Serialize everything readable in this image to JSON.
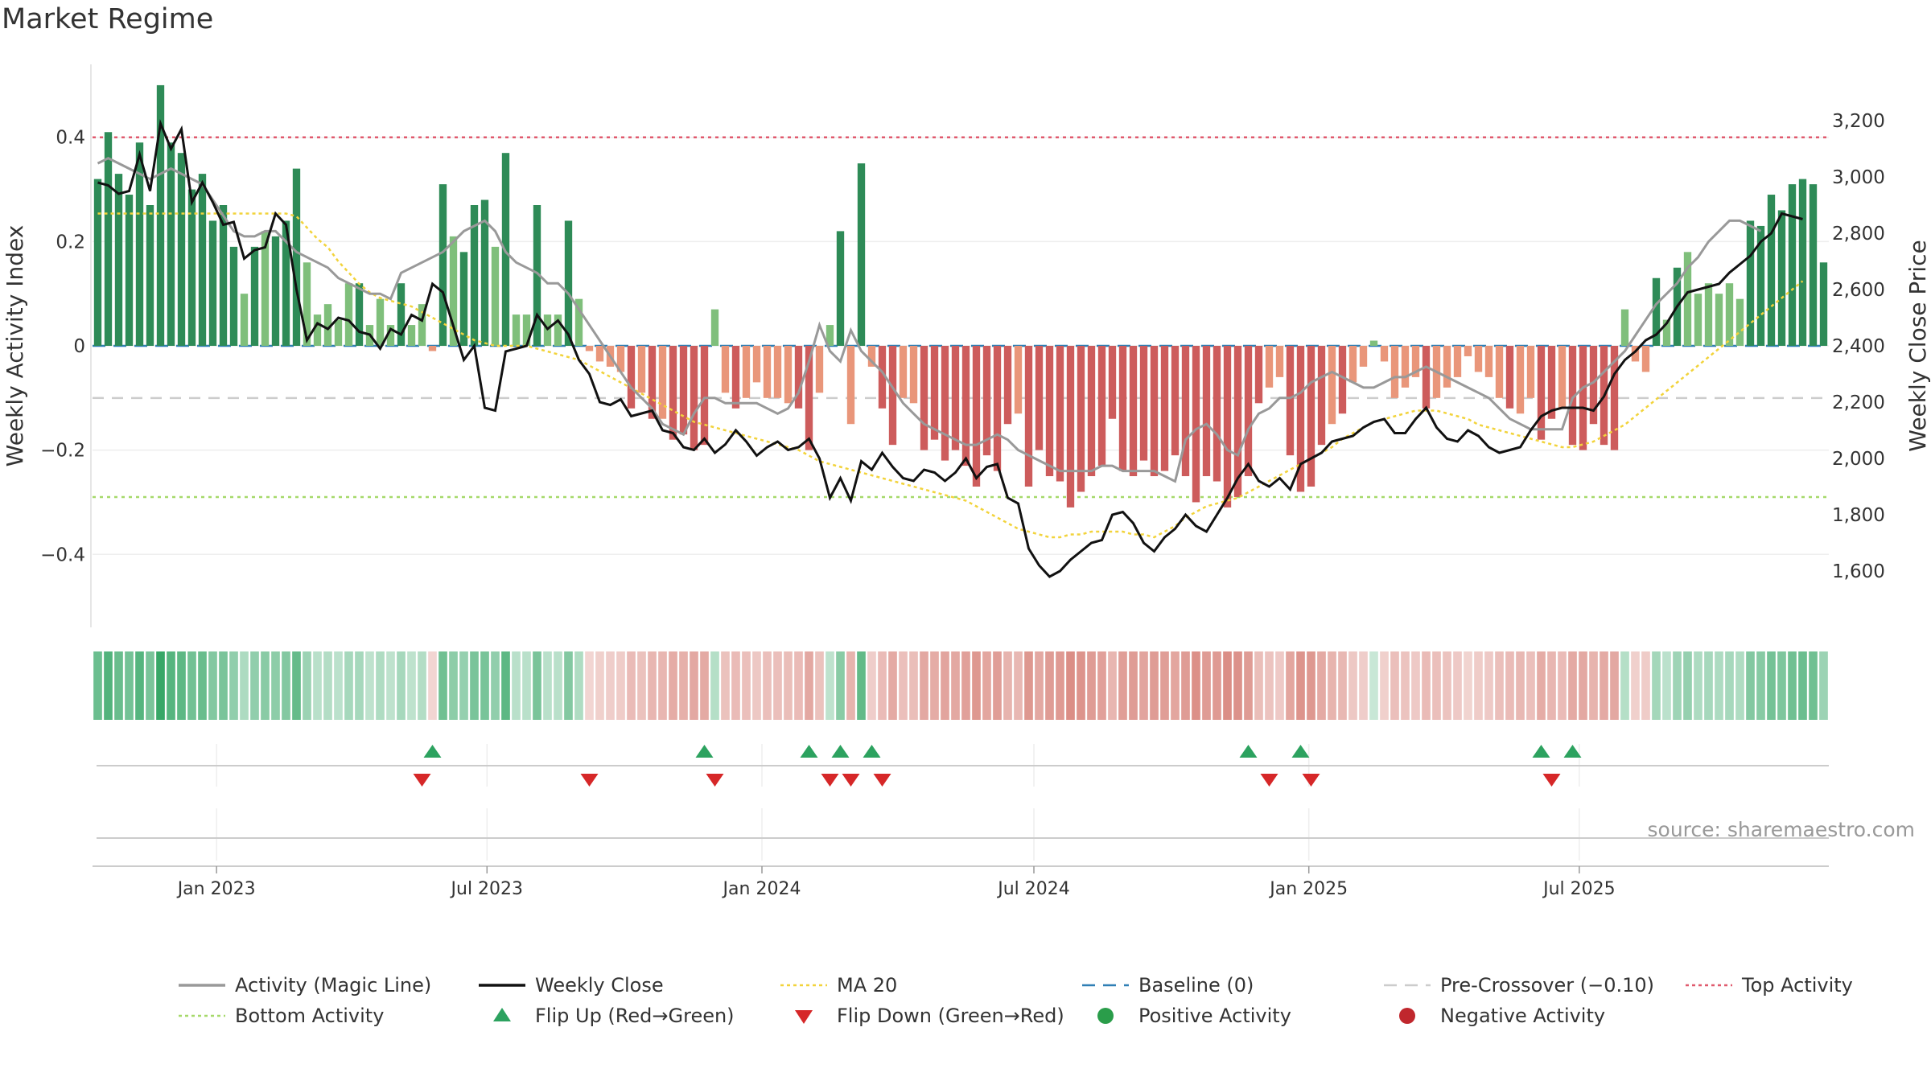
{
  "chart_data": {
    "type": "bar",
    "title": "Market Regime",
    "ylabel_left": "Weekly Activity Index",
    "ylabel_right": "Weekly Close Price",
    "source": "source: sharemaestro.com",
    "x_ticks": [
      "Jan 2023",
      "Jul 2023",
      "Jan 2024",
      "Jul 2024",
      "Jan 2025",
      "Jul 2025"
    ],
    "left_axis": {
      "ylim": [
        -0.54,
        0.54
      ],
      "ticks": [
        0.4,
        0.2,
        0,
        -0.2,
        -0.4
      ],
      "tick_labels": [
        "0.4",
        "0.2",
        "0",
        "−0.2",
        "−0.4"
      ]
    },
    "right_axis": {
      "ylim": [
        1400,
        3400
      ],
      "ticks": [
        3200,
        3000,
        2800,
        2600,
        2400,
        2200,
        2000,
        1800,
        1600
      ],
      "tick_labels": [
        "3,200",
        "3,000",
        "2,800",
        "2,600",
        "2,400",
        "2,200",
        "2,000",
        "1,800",
        "1,600"
      ]
    },
    "reference_lines": {
      "top_activity": 0.4,
      "pre_crossover": -0.1,
      "bottom_activity": -0.29,
      "baseline": 0
    },
    "first_week": "2022-10-10",
    "activity_bars": [
      0.32,
      0.41,
      0.33,
      0.29,
      0.39,
      0.27,
      0.5,
      0.39,
      0.37,
      0.3,
      0.33,
      0.24,
      0.27,
      0.19,
      0.1,
      0.19,
      0.22,
      0.21,
      0.24,
      0.34,
      0.16,
      0.06,
      0.08,
      0.05,
      0.12,
      0.12,
      0.04,
      0.09,
      0.04,
      0.12,
      0.04,
      0.08,
      -0.01,
      0.31,
      0.21,
      0.18,
      0.27,
      0.28,
      0.19,
      0.37,
      0.06,
      0.06,
      0.27,
      0.06,
      0.06,
      0.24,
      0.09,
      -0.01,
      -0.03,
      -0.04,
      -0.05,
      -0.12,
      -0.09,
      -0.14,
      -0.14,
      -0.18,
      -0.17,
      -0.2,
      -0.19,
      0.07,
      -0.09,
      -0.12,
      -0.1,
      -0.07,
      -0.1,
      -0.1,
      -0.11,
      -0.12,
      -0.2,
      -0.09,
      0.04,
      0.22,
      -0.15,
      0.35,
      -0.04,
      -0.12,
      -0.19,
      -0.1,
      -0.11,
      -0.2,
      -0.18,
      -0.22,
      -0.2,
      -0.23,
      -0.27,
      -0.21,
      -0.24,
      -0.15,
      -0.13,
      -0.27,
      -0.2,
      -0.25,
      -0.26,
      -0.31,
      -0.28,
      -0.25,
      -0.23,
      -0.14,
      -0.24,
      -0.25,
      -0.22,
      -0.25,
      -0.24,
      -0.21,
      -0.25,
      -0.3,
      -0.25,
      -0.26,
      -0.31,
      -0.29,
      -0.25,
      -0.11,
      -0.08,
      -0.06,
      -0.21,
      -0.28,
      -0.27,
      -0.19,
      -0.15,
      -0.13,
      -0.07,
      -0.04,
      0.01,
      -0.03,
      -0.1,
      -0.08,
      -0.06,
      -0.12,
      -0.1,
      -0.08,
      -0.06,
      -0.02,
      -0.05,
      -0.06,
      -0.1,
      -0.12,
      -0.13,
      -0.1,
      -0.18,
      -0.14,
      -0.12,
      -0.19,
      -0.2,
      -0.15,
      -0.19,
      -0.2,
      0.07,
      -0.03,
      -0.05,
      0.13,
      0.05,
      0.15,
      0.18,
      0.1,
      0.12,
      0.1,
      0.12,
      0.09,
      0.24,
      0.23,
      0.29,
      0.26,
      0.31,
      0.32,
      0.31,
      0.16
    ],
    "weekly_close": [
      2980,
      2970,
      2940,
      2950,
      3080,
      2950,
      3190,
      3100,
      3170,
      2910,
      2980,
      2910,
      2830,
      2840,
      2710,
      2740,
      2750,
      2870,
      2830,
      2600,
      2420,
      2480,
      2460,
      2500,
      2490,
      2450,
      2440,
      2390,
      2460,
      2440,
      2510,
      2490,
      2620,
      2590,
      2470,
      2350,
      2400,
      2180,
      2170,
      2380,
      2390,
      2400,
      2510,
      2460,
      2490,
      2440,
      2350,
      2300,
      2200,
      2190,
      2210,
      2150,
      2160,
      2170,
      2100,
      2090,
      2040,
      2030,
      2070,
      2020,
      2050,
      2100,
      2060,
      2010,
      2040,
      2060,
      2030,
      2040,
      2070,
      2000,
      1860,
      1930,
      1850,
      1990,
      1960,
      2020,
      1970,
      1930,
      1920,
      1960,
      1950,
      1920,
      1950,
      2000,
      1930,
      1970,
      1980,
      1860,
      1840,
      1680,
      1620,
      1580,
      1600,
      1640,
      1670,
      1700,
      1710,
      1800,
      1810,
      1770,
      1700,
      1670,
      1720,
      1750,
      1800,
      1760,
      1740,
      1800,
      1860,
      1930,
      1980,
      1920,
      1900,
      1930,
      1890,
      1980,
      2000,
      2020,
      2060,
      2070,
      2080,
      2110,
      2130,
      2140,
      2090,
      2090,
      2140,
      2180,
      2110,
      2070,
      2060,
      2100,
      2080,
      2040,
      2020,
      2030,
      2040,
      2100,
      2150,
      2170,
      2180,
      2180,
      2180,
      2170,
      2220,
      2300,
      2350,
      2380,
      2420,
      2440,
      2480,
      2540,
      2590,
      2600,
      2610,
      2620,
      2660,
      2690,
      2720,
      2770,
      2800,
      2870,
      2860,
      2850
    ],
    "magic_line": [
      0.35,
      0.36,
      0.35,
      0.34,
      0.33,
      0.32,
      0.33,
      0.34,
      0.33,
      0.32,
      0.31,
      0.28,
      0.25,
      0.22,
      0.21,
      0.21,
      0.22,
      0.22,
      0.2,
      0.18,
      0.17,
      0.16,
      0.15,
      0.13,
      0.12,
      0.11,
      0.1,
      0.1,
      0.09,
      0.14,
      0.15,
      0.16,
      0.17,
      0.18,
      0.2,
      0.22,
      0.23,
      0.24,
      0.22,
      0.18,
      0.16,
      0.15,
      0.14,
      0.12,
      0.12,
      0.1,
      0.07,
      0.04,
      0.01,
      -0.02,
      -0.05,
      -0.08,
      -0.1,
      -0.12,
      -0.15,
      -0.16,
      -0.17,
      -0.13,
      -0.1,
      -0.1,
      -0.11,
      -0.11,
      -0.11,
      -0.11,
      -0.12,
      -0.13,
      -0.12,
      -0.09,
      -0.03,
      0.04,
      -0.01,
      -0.03,
      0.03,
      -0.01,
      -0.03,
      -0.05,
      -0.08,
      -0.11,
      -0.13,
      -0.15,
      -0.16,
      -0.17,
      -0.18,
      -0.19,
      -0.19,
      -0.18,
      -0.17,
      -0.18,
      -0.2,
      -0.21,
      -0.22,
      -0.23,
      -0.24,
      -0.24,
      -0.24,
      -0.24,
      -0.23,
      -0.23,
      -0.24,
      -0.24,
      -0.24,
      -0.24,
      -0.25,
      -0.26,
      -0.18,
      -0.16,
      -0.15,
      -0.17,
      -0.2,
      -0.21,
      -0.16,
      -0.13,
      -0.12,
      -0.1,
      -0.1,
      -0.09,
      -0.07,
      -0.06,
      -0.05,
      -0.06,
      -0.07,
      -0.08,
      -0.08,
      -0.07,
      -0.06,
      -0.06,
      -0.05,
      -0.04,
      -0.05,
      -0.06,
      -0.07,
      -0.08,
      -0.09,
      -0.1,
      -0.12,
      -0.14,
      -0.15,
      -0.16,
      -0.16,
      -0.16,
      -0.16,
      -0.1,
      -0.08,
      -0.07,
      -0.05,
      -0.03,
      -0.01,
      0.02,
      0.05,
      0.08,
      0.1,
      0.12,
      0.15,
      0.17,
      0.2,
      0.22,
      0.24,
      0.24,
      0.23,
      0.22
    ],
    "ma20": [
      2870,
      2870,
      2870,
      2870,
      2870,
      2870,
      2870,
      2870,
      2870,
      2870,
      2870,
      2870,
      2870,
      2870,
      2870,
      2870,
      2870,
      2870,
      2870,
      2860,
      2820,
      2780,
      2750,
      2700,
      2660,
      2620,
      2590,
      2570,
      2560,
      2550,
      2540,
      2520,
      2500,
      2480,
      2460,
      2440,
      2420,
      2410,
      2400,
      2400,
      2400,
      2400,
      2390,
      2380,
      2370,
      2360,
      2350,
      2330,
      2310,
      2290,
      2270,
      2250,
      2230,
      2210,
      2190,
      2170,
      2150,
      2130,
      2120,
      2110,
      2100,
      2090,
      2080,
      2070,
      2060,
      2050,
      2040,
      2030,
      2010,
      1990,
      1980,
      1970,
      1960,
      1950,
      1940,
      1930,
      1920,
      1910,
      1900,
      1890,
      1880,
      1870,
      1860,
      1850,
      1830,
      1810,
      1790,
      1770,
      1750,
      1740,
      1730,
      1720,
      1720,
      1730,
      1730,
      1740,
      1740,
      1740,
      1740,
      1730,
      1730,
      1720,
      1740,
      1760,
      1790,
      1810,
      1830,
      1840,
      1850,
      1860,
      1880,
      1900,
      1920,
      1940,
      1960,
      1980,
      2000,
      2020,
      2040,
      2070,
      2090,
      2110,
      2130,
      2140,
      2150,
      2160,
      2170,
      2170,
      2170,
      2160,
      2150,
      2140,
      2120,
      2110,
      2100,
      2090,
      2080,
      2070,
      2060,
      2050,
      2040,
      2040,
      2050,
      2060,
      2080,
      2100,
      2120,
      2150,
      2180,
      2210,
      2240,
      2270,
      2300,
      2330,
      2360,
      2390,
      2420,
      2450,
      2480,
      2510,
      2540,
      2570,
      2600,
      2630
    ],
    "flip_up_weeks": [
      32,
      58,
      68,
      71,
      74,
      110,
      115,
      138,
      141
    ],
    "flip_down_weeks": [
      31,
      47,
      59,
      70,
      72,
      75,
      112,
      116,
      139
    ],
    "regime_strip_note": "shading intensity follows activity sign and magnitude",
    "legend": [
      {
        "label": "Activity (Magic Line)",
        "kind": "line",
        "color": "#999999"
      },
      {
        "label": "Weekly Close",
        "kind": "line",
        "color": "#111111"
      },
      {
        "label": "MA 20",
        "kind": "dotted",
        "color": "#f2d33b"
      },
      {
        "label": "Baseline (0)",
        "kind": "dashed",
        "color": "#2f7fb5"
      },
      {
        "label": "Pre-Crossover (−0.10)",
        "kind": "dashed",
        "color": "#cccccc"
      },
      {
        "label": "Top Activity",
        "kind": "dotted",
        "color": "#e05a6e"
      },
      {
        "label": "Bottom Activity",
        "kind": "dotted",
        "color": "#a6d96a"
      },
      {
        "label": "Flip Up (Red→Green)",
        "kind": "triangle-up",
        "color": "#2ca25f"
      },
      {
        "label": "Flip Down (Green→Red)",
        "kind": "triangle-down",
        "color": "#d62728"
      },
      {
        "label": "Positive Activity",
        "kind": "dot",
        "color": "#2a9d4a"
      },
      {
        "label": "Negative Activity",
        "kind": "dot",
        "color": "#c0272d"
      }
    ],
    "colors": {
      "pos_strong": "#2e8b57",
      "pos_weak": "#7fbf7b",
      "neg_strong": "#cd5c5c",
      "neg_weak": "#e9967a",
      "close": "#111111",
      "magic": "#999999",
      "ma20": "#f2d33b"
    }
  }
}
